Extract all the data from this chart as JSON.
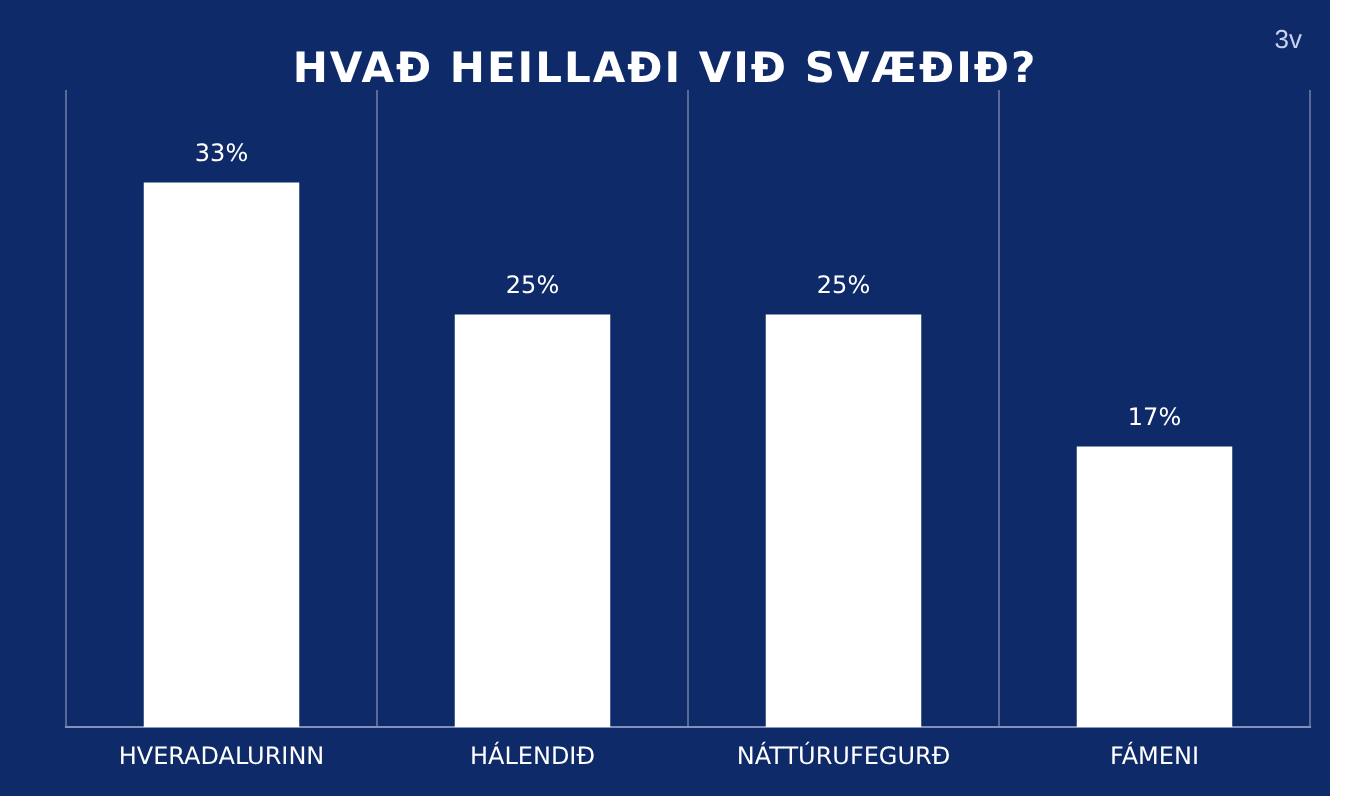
{
  "chart_data": {
    "type": "bar",
    "title": "HVAÐ HEILLAÐI  VIÐ SVÆÐIÐ?",
    "annotations": [
      "3v"
    ],
    "categories": [
      "HVERADALURINN",
      "HÁLENDIÐ",
      "NÁTTÚRUFEGURÐ",
      "FÁMENI"
    ],
    "values": [
      33,
      25,
      25,
      17
    ],
    "value_labels": [
      "33%",
      "25%",
      "25%",
      "17%"
    ],
    "color": "#ffffff",
    "grid": "x",
    "legend": false
  }
}
